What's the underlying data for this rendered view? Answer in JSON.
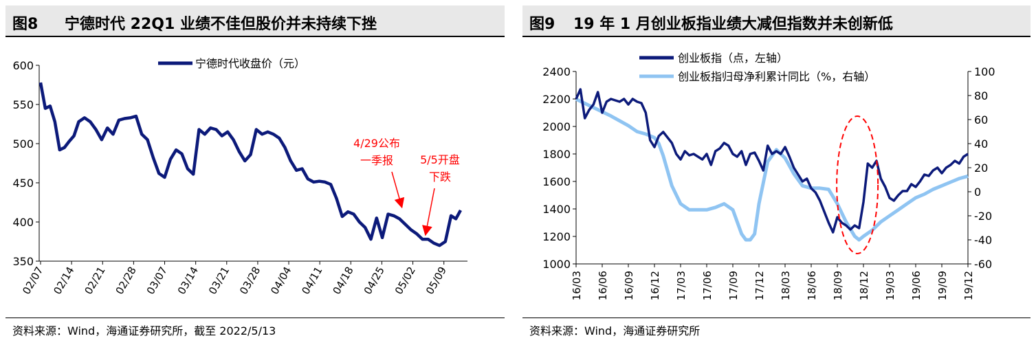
{
  "left": {
    "figure_number": "图8",
    "title": "宁德时代 22Q1 业绩不佳但股价并未持续下挫",
    "source": "资料来源：Wind，海通证券研究所，截至 2022/5/13"
  },
  "right": {
    "figure_number": "图9",
    "title": "19 年 1 月创业板指业绩大减但指数并未创新低",
    "source": "资料来源：Wind，海通证券研究所"
  },
  "chart_data": [
    {
      "type": "line",
      "title": "宁德时代 22Q1 业绩不佳但股价并未持续下挫",
      "ylim": [
        350,
        600
      ],
      "yticks": [
        350,
        400,
        450,
        500,
        550,
        600
      ],
      "x_range": [
        0,
        44
      ],
      "tick_labels": [
        "02/07",
        "02/14",
        "02/21",
        "02/28",
        "03/07",
        "03/14",
        "03/21",
        "03/28",
        "04/04",
        "04/11",
        "04/18",
        "04/25",
        "05/02",
        "05/09"
      ],
      "tick_positions": [
        0,
        3.25,
        6.5,
        9.75,
        13,
        16.25,
        19.5,
        22.75,
        26,
        29.25,
        32.5,
        35.75,
        39,
        42.25
      ],
      "legend": "宁德时代收盘价（元）",
      "series": [
        {
          "name": "宁德时代收盘价（元）",
          "color": "#0c1a7a",
          "points": [
            [
              0,
              578
            ],
            [
              0.5,
              545
            ],
            [
              1,
              548
            ],
            [
              1.5,
              528
            ],
            [
              2,
              492
            ],
            [
              2.5,
              495
            ],
            [
              3,
              503
            ],
            [
              3.5,
              510
            ],
            [
              4,
              528
            ],
            [
              4.6,
              533
            ],
            [
              5.2,
              528
            ],
            [
              5.8,
              518
            ],
            [
              6.4,
              505
            ],
            [
              7,
              520
            ],
            [
              7.6,
              512
            ],
            [
              8.2,
              530
            ],
            [
              8.8,
              532
            ],
            [
              9.4,
              533
            ],
            [
              10,
              535
            ],
            [
              10.6,
              512
            ],
            [
              11.2,
              505
            ],
            [
              11.8,
              482
            ],
            [
              12.4,
              462
            ],
            [
              13,
              457
            ],
            [
              13.6,
              480
            ],
            [
              14.2,
              492
            ],
            [
              14.8,
              487
            ],
            [
              15.4,
              468
            ],
            [
              16,
              461
            ],
            [
              16.6,
              518
            ],
            [
              17.2,
              512
            ],
            [
              17.8,
              520
            ],
            [
              18.4,
              518
            ],
            [
              19,
              510
            ],
            [
              19.6,
              515
            ],
            [
              20.2,
              505
            ],
            [
              20.8,
              490
            ],
            [
              21.4,
              478
            ],
            [
              22,
              486
            ],
            [
              22.6,
              518
            ],
            [
              23.2,
              512
            ],
            [
              23.8,
              515
            ],
            [
              24.4,
              512
            ],
            [
              25,
              507
            ],
            [
              25.6,
              495
            ],
            [
              26.2,
              478
            ],
            [
              26.8,
              466
            ],
            [
              27.4,
              468
            ],
            [
              28,
              455
            ],
            [
              28.6,
              451
            ],
            [
              29.2,
              452
            ],
            [
              29.8,
              451
            ],
            [
              30.4,
              448
            ],
            [
              31,
              430
            ],
            [
              31.6,
              407
            ],
            [
              32.2,
              413
            ],
            [
              32.8,
              410
            ],
            [
              33.4,
              400
            ],
            [
              34,
              393
            ],
            [
              34.6,
              378
            ],
            [
              35.2,
              405
            ],
            [
              35.8,
              380
            ],
            [
              36.4,
              410
            ],
            [
              37,
              408
            ],
            [
              37.6,
              404
            ],
            [
              38.2,
              397
            ],
            [
              38.8,
              390
            ],
            [
              39.4,
              385
            ],
            [
              40,
              378
            ],
            [
              40.6,
              378
            ],
            [
              41.2,
              373
            ],
            [
              41.8,
              370
            ],
            [
              42.4,
              375
            ],
            [
              43,
              408
            ],
            [
              43.5,
              404
            ],
            [
              44,
              415
            ]
          ]
        }
      ],
      "annotations": [
        {
          "text": [
            "4/29公布",
            "一季报"
          ],
          "color": "#ff0000"
        },
        {
          "text": [
            "5/5开盘",
            "下跌"
          ],
          "color": "#ff0000"
        }
      ]
    },
    {
      "type": "line",
      "title": "19 年 1 月创业板指业绩大减但指数并未创新低",
      "ylim": [
        1000,
        2400
      ],
      "yticks": [
        1000,
        1200,
        1400,
        1600,
        1800,
        2000,
        2200,
        2400
      ],
      "y2lim": [
        -60,
        100
      ],
      "y2ticks": [
        -60,
        -40,
        -20,
        0,
        20,
        40,
        60,
        80,
        100
      ],
      "x_range": [
        0,
        45
      ],
      "tick_labels": [
        "16/03",
        "16/06",
        "16/09",
        "16/12",
        "17/03",
        "17/06",
        "17/09",
        "17/12",
        "18/03",
        "18/06",
        "18/09",
        "18/12",
        "19/03",
        "19/06",
        "19/09",
        "19/12"
      ],
      "series": [
        {
          "name": "创业板指（点，左轴）",
          "axis": "left",
          "color": "#0c1a7a",
          "points": [
            [
              0,
              2200
            ],
            [
              0.5,
              2270
            ],
            [
              1,
              2060
            ],
            [
              1.5,
              2120
            ],
            [
              2,
              2160
            ],
            [
              2.5,
              2250
            ],
            [
              3,
              2100
            ],
            [
              3.5,
              2180
            ],
            [
              4,
              2200
            ],
            [
              4.5,
              2190
            ],
            [
              5,
              2180
            ],
            [
              5.5,
              2200
            ],
            [
              6,
              2160
            ],
            [
              6.5,
              2200
            ],
            [
              7,
              2180
            ],
            [
              7.5,
              2170
            ],
            [
              8,
              2100
            ],
            [
              8.5,
              1900
            ],
            [
              9,
              1850
            ],
            [
              9.5,
              1930
            ],
            [
              10,
              1960
            ],
            [
              10.5,
              1920
            ],
            [
              11,
              1880
            ],
            [
              11.5,
              1800
            ],
            [
              12,
              1760
            ],
            [
              12.5,
              1820
            ],
            [
              13,
              1790
            ],
            [
              13.5,
              1800
            ],
            [
              14,
              1780
            ],
            [
              14.5,
              1760
            ],
            [
              15,
              1800
            ],
            [
              15.5,
              1720
            ],
            [
              16,
              1820
            ],
            [
              16.5,
              1840
            ],
            [
              17,
              1880
            ],
            [
              17.5,
              1860
            ],
            [
              18,
              1800
            ],
            [
              18.5,
              1780
            ],
            [
              19,
              1820
            ],
            [
              19.5,
              1720
            ],
            [
              20,
              1800
            ],
            [
              20.5,
              1810
            ],
            [
              21,
              1750
            ],
            [
              21.5,
              1680
            ],
            [
              22,
              1860
            ],
            [
              22.5,
              1800
            ],
            [
              23,
              1820
            ],
            [
              23.5,
              1800
            ],
            [
              24,
              1850
            ],
            [
              24.5,
              1780
            ],
            [
              25,
              1700
            ],
            [
              25.5,
              1650
            ],
            [
              26,
              1600
            ],
            [
              26.5,
              1620
            ],
            [
              27,
              1550
            ],
            [
              27.5,
              1520
            ],
            [
              28,
              1460
            ],
            [
              28.5,
              1380
            ],
            [
              29,
              1300
            ],
            [
              29.5,
              1230
            ],
            [
              30,
              1340
            ],
            [
              30.5,
              1300
            ],
            [
              31,
              1280
            ],
            [
              31.5,
              1250
            ],
            [
              32,
              1280
            ],
            [
              32.5,
              1260
            ],
            [
              33,
              1450
            ],
            [
              33.5,
              1730
            ],
            [
              34,
              1700
            ],
            [
              34.5,
              1750
            ],
            [
              35,
              1620
            ],
            [
              35.5,
              1560
            ],
            [
              36,
              1480
            ],
            [
              36.5,
              1460
            ],
            [
              37,
              1500
            ],
            [
              37.5,
              1530
            ],
            [
              38,
              1530
            ],
            [
              38.5,
              1580
            ],
            [
              39,
              1560
            ],
            [
              39.5,
              1600
            ],
            [
              40,
              1650
            ],
            [
              40.5,
              1640
            ],
            [
              41,
              1680
            ],
            [
              41.5,
              1700
            ],
            [
              42,
              1660
            ],
            [
              42.5,
              1700
            ],
            [
              43,
              1720
            ],
            [
              43.5,
              1750
            ],
            [
              44,
              1730
            ],
            [
              44.5,
              1780
            ],
            [
              45,
              1800
            ]
          ]
        },
        {
          "name": "创业板指归母净利累计同比（%，右轴）",
          "axis": "right",
          "color": "#8fc4f2",
          "points": [
            [
              0,
              77
            ],
            [
              2,
              70
            ],
            [
              4,
              63
            ],
            [
              6,
              55
            ],
            [
              7,
              50
            ],
            [
              8,
              48
            ],
            [
              9,
              45
            ],
            [
              9.5,
              40
            ],
            [
              10,
              30
            ],
            [
              11,
              5
            ],
            [
              12,
              -10
            ],
            [
              13,
              -15
            ],
            [
              14,
              -15
            ],
            [
              15,
              -15
            ],
            [
              16,
              -13
            ],
            [
              17,
              -10
            ],
            [
              18,
              -15
            ],
            [
              19,
              -35
            ],
            [
              19.5,
              -40
            ],
            [
              20,
              -40
            ],
            [
              20.5,
              -35
            ],
            [
              21,
              -10
            ],
            [
              22,
              25
            ],
            [
              23,
              35
            ],
            [
              24,
              28
            ],
            [
              25,
              15
            ],
            [
              26,
              5
            ],
            [
              27,
              3
            ],
            [
              28,
              3
            ],
            [
              29,
              2
            ],
            [
              30,
              -10
            ],
            [
              31,
              -25
            ],
            [
              32,
              -37
            ],
            [
              32.5,
              -40
            ],
            [
              33,
              -37
            ],
            [
              34,
              -32
            ],
            [
              35,
              -25
            ],
            [
              36,
              -20
            ],
            [
              37,
              -15
            ],
            [
              38,
              -10
            ],
            [
              39,
              -5
            ],
            [
              40,
              -2
            ],
            [
              41,
              2
            ],
            [
              42,
              5
            ],
            [
              43,
              8
            ],
            [
              44,
              11
            ],
            [
              45,
              13
            ]
          ]
        }
      ],
      "annotations": [
        {
          "text": [],
          "shape": "dashed-ellipse",
          "color": "#ff0000"
        }
      ]
    }
  ]
}
